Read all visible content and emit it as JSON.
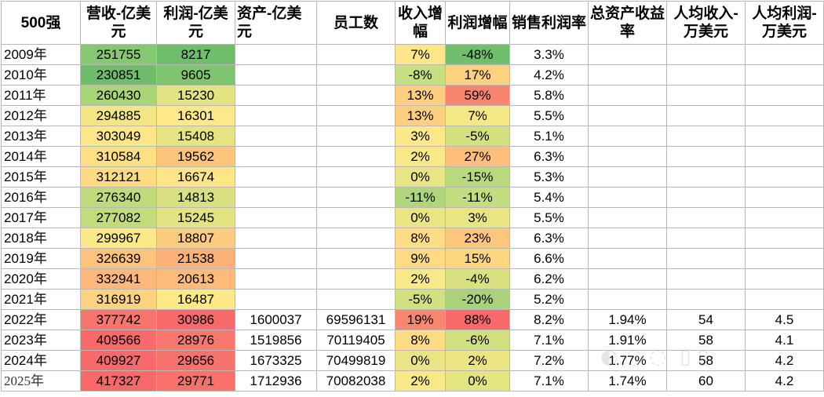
{
  "headers": {
    "year": "500强",
    "revenue": "营收-亿美元",
    "profit": "利润-亿美元",
    "assets": "资产-亿美元",
    "employees": "员工数",
    "rev_growth": "收入增幅",
    "profit_growth": "利润增幅",
    "margin": "销售利润率",
    "roa": "总资产收益率",
    "rev_per_cap": "人均收入-万美元",
    "profit_per_cap": "人均利润-万美元"
  },
  "rows": [
    {
      "year": "2009年",
      "revenue": "251755",
      "profit": "8217",
      "assets": "",
      "employees": "",
      "rev_growth": "7%",
      "profit_growth": "-48%",
      "margin": "3.3%",
      "roa": "",
      "rev_per_cap": "",
      "profit_per_cap": "",
      "c_rev": "#86c871",
      "c_profit": "#6fbe6b",
      "c_rg": "#fde58a",
      "c_pg": "#70bf6c"
    },
    {
      "year": "2010年",
      "revenue": "230851",
      "profit": "9605",
      "assets": "",
      "employees": "",
      "rev_growth": "-8%",
      "profit_growth": "17%",
      "margin": "4.2%",
      "roa": "",
      "rev_per_cap": "",
      "profit_per_cap": "",
      "c_rev": "#6fbd6b",
      "c_profit": "#7fc46e",
      "c_rg": "#c6df80",
      "c_pg": "#fdd27e"
    },
    {
      "year": "2011年",
      "revenue": "260430",
      "profit": "15230",
      "assets": "",
      "employees": "",
      "rev_growth": "13%",
      "profit_growth": "59%",
      "margin": "5.8%",
      "roa": "",
      "rev_per_cap": "",
      "profit_per_cap": "",
      "c_rev": "#a9d577",
      "c_profit": "#e2e383",
      "c_rg": "#fdd07f",
      "c_pg": "#f98570"
    },
    {
      "year": "2012年",
      "revenue": "294885",
      "profit": "16301",
      "assets": "",
      "employees": "",
      "rev_growth": "13%",
      "profit_growth": "7%",
      "margin": "5.5%",
      "roa": "",
      "rev_per_cap": "",
      "profit_per_cap": "",
      "c_rev": "#f1e584",
      "c_profit": "#fde987",
      "c_rg": "#fdd07f",
      "c_pg": "#f6e785"
    },
    {
      "year": "2013年",
      "revenue": "303049",
      "profit": "15408",
      "assets": "",
      "employees": "",
      "rev_growth": "3%",
      "profit_growth": "-5%",
      "margin": "5.1%",
      "roa": "",
      "rev_per_cap": "",
      "profit_per_cap": "",
      "c_rev": "#fde687",
      "c_profit": "#e6e383",
      "c_rg": "#fde889",
      "c_pg": "#d4e07f"
    },
    {
      "year": "2014年",
      "revenue": "310584",
      "profit": "19562",
      "assets": "",
      "employees": "",
      "rev_growth": "2%",
      "profit_growth": "27%",
      "margin": "6.3%",
      "roa": "",
      "rev_per_cap": "",
      "profit_per_cap": "",
      "c_rev": "#fddf84",
      "c_profit": "#fdc47c",
      "c_rg": "#f8e887",
      "c_pg": "#fdbf7b"
    },
    {
      "year": "2015年",
      "revenue": "312121",
      "profit": "16674",
      "assets": "",
      "employees": "",
      "rev_growth": "0%",
      "profit_growth": "-15%",
      "margin": "5.3%",
      "roa": "",
      "rev_per_cap": "",
      "profit_per_cap": "",
      "c_rev": "#fddb83",
      "c_profit": "#fee688",
      "c_rg": "#eae584",
      "c_pg": "#b9da7c"
    },
    {
      "year": "2016年",
      "revenue": "276340",
      "profit": "14813",
      "assets": "",
      "employees": "",
      "rev_growth": "-11%",
      "profit_growth": "-11%",
      "margin": "5.4%",
      "roa": "",
      "rev_per_cap": "",
      "profit_per_cap": "",
      "c_rev": "#bfdb7b",
      "c_profit": "#d8e081",
      "c_rg": "#b0d67c",
      "c_pg": "#c4dd7e"
    },
    {
      "year": "2017年",
      "revenue": "277082",
      "profit": "15245",
      "assets": "",
      "employees": "",
      "rev_growth": "0%",
      "profit_growth": "3%",
      "margin": "5.5%",
      "roa": "",
      "rev_per_cap": "",
      "profit_per_cap": "",
      "c_rev": "#c2dc7c",
      "c_profit": "#e3e383",
      "c_rg": "#eae584",
      "c_pg": "#eae584"
    },
    {
      "year": "2018年",
      "revenue": "299967",
      "profit": "18807",
      "assets": "",
      "employees": "",
      "rev_growth": "8%",
      "profit_growth": "23%",
      "margin": "6.3%",
      "roa": "",
      "rev_per_cap": "",
      "profit_per_cap": "",
      "c_rev": "#fbe886",
      "c_profit": "#fdcb7e",
      "c_rg": "#fddc84",
      "c_pg": "#fdc67c"
    },
    {
      "year": "2019年",
      "revenue": "326639",
      "profit": "21538",
      "assets": "",
      "employees": "",
      "rev_growth": "9%",
      "profit_growth": "15%",
      "margin": "6.6%",
      "roa": "",
      "rev_per_cap": "",
      "profit_per_cap": "",
      "c_rev": "#fdc27c",
      "c_profit": "#fbb178",
      "c_rg": "#fdda83",
      "c_pg": "#fdd780"
    },
    {
      "year": "2020年",
      "revenue": "332941",
      "profit": "20613",
      "assets": "",
      "employees": "",
      "rev_growth": "2%",
      "profit_growth": "-4%",
      "margin": "6.2%",
      "roa": "",
      "rev_per_cap": "",
      "profit_per_cap": "",
      "c_rev": "#fcb77a",
      "c_profit": "#fdbb7a",
      "c_rg": "#f8e887",
      "c_pg": "#dae181"
    },
    {
      "year": "2021年",
      "revenue": "316919",
      "profit": "16487",
      "assets": "",
      "employees": "",
      "rev_growth": "-5%",
      "profit_growth": "-20%",
      "margin": "5.2%",
      "roa": "",
      "rev_per_cap": "",
      "profit_per_cap": "",
      "c_rev": "#fdd381",
      "c_profit": "#fde987",
      "c_rg": "#d2e081",
      "c_pg": "#a9d27a"
    },
    {
      "year": "2022年",
      "revenue": "377742",
      "profit": "30986",
      "assets": "1600037",
      "employees": "69596131",
      "rev_growth": "19%",
      "profit_growth": "88%",
      "margin": "8.2%",
      "roa": "1.94%",
      "rev_per_cap": "54",
      "profit_per_cap": "4.5",
      "c_rev": "#f6766d",
      "c_profit": "#f8696b",
      "c_rg": "#f98770",
      "c_pg": "#f8696b"
    },
    {
      "year": "2023年",
      "revenue": "409566",
      "profit": "28976",
      "assets": "1519856",
      "employees": "70119405",
      "rev_growth": "8%",
      "profit_growth": "-6%",
      "margin": "7.1%",
      "roa": "1.91%",
      "rev_per_cap": "58",
      "profit_per_cap": "4.1",
      "c_rev": "#f8696b",
      "c_profit": "#f8776e",
      "c_rg": "#fddc84",
      "c_pg": "#d1e07f"
    },
    {
      "year": "2024年",
      "revenue": "409927",
      "profit": "29656",
      "assets": "1673325",
      "employees": "70499819",
      "rev_growth": "0%",
      "profit_growth": "2%",
      "margin": "7.2%",
      "roa": "1.77%",
      "rev_per_cap": "58",
      "profit_per_cap": "4.2",
      "c_rev": "#f8696b",
      "c_profit": "#f8726d",
      "c_rg": "#eae584",
      "c_pg": "#ebe584"
    },
    {
      "year": "2025年",
      "revenue": "417327",
      "profit": "29771",
      "assets": "1712936",
      "employees": "70082038",
      "rev_growth": "2%",
      "profit_growth": "0%",
      "margin": "7.1%",
      "roa": "1.74%",
      "rev_per_cap": "60",
      "profit_per_cap": "4.2",
      "c_rev": "#f8696b",
      "c_profit": "#f8716d",
      "c_rg": "#f8e887",
      "c_pg": "#e5e483"
    }
  ]
}
